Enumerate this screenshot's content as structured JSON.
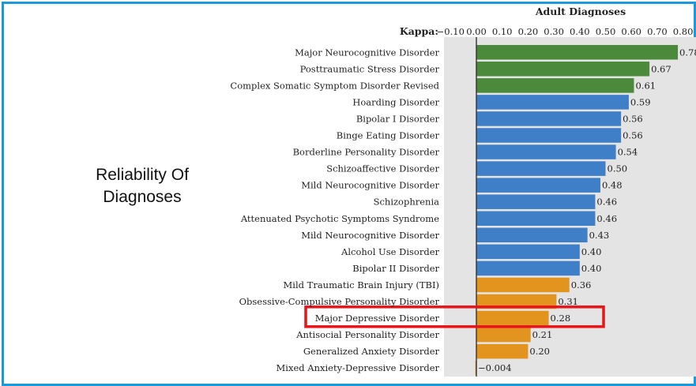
{
  "side_label": {
    "line1": "Reliability Of",
    "line2": "Diagnoses"
  },
  "colors": {
    "green": "#4a8a3a",
    "blue": "#3f7fc8",
    "orange": "#e3941e",
    "highlight": "#e8141a",
    "frame": "#1a9ad9",
    "grid_bg": "#e4e4e4"
  },
  "chart_data": {
    "type": "bar",
    "orientation": "horizontal",
    "title": "Adult Diagnoses",
    "axis_label": "Kappa:",
    "xlim": [
      -0.1,
      0.8
    ],
    "ticks": [
      "−0.10",
      "0.00",
      "0.10",
      "0.20",
      "0.30",
      "0.40",
      "0.50",
      "0.60",
      "0.70",
      "0.80"
    ],
    "tick_values": [
      -0.1,
      0.0,
      0.1,
      0.2,
      0.3,
      0.4,
      0.5,
      0.6,
      0.7,
      0.8
    ],
    "categories": [
      "Major Neurocognitive Disorder",
      "Posttraumatic Stress Disorder",
      "Complex Somatic Symptom Disorder Revised",
      "Hoarding Disorder",
      "Bipolar I Disorder",
      "Binge Eating Disorder",
      "Borderline Personality Disorder",
      "Schizoaffective Disorder",
      "Mild Neurocognitive Disorder",
      "Schizophrenia",
      "Attenuated Psychotic Symptoms Syndrome",
      "Mild Neurocognitive Disorder",
      "Alcohol Use Disorder",
      "Bipolar II Disorder",
      "Mild Traumatic Brain Injury (TBI)",
      "Obsessive-Compulsive Personality Disorder",
      "Major Depressive Disorder",
      "Antisocial Personality Disorder",
      "Generalized Anxiety Disorder",
      "Mixed Anxiety-Depressive Disorder"
    ],
    "values": [
      0.78,
      0.67,
      0.61,
      0.59,
      0.56,
      0.56,
      0.54,
      0.5,
      0.48,
      0.46,
      0.46,
      0.43,
      0.4,
      0.4,
      0.36,
      0.31,
      0.28,
      0.21,
      0.2,
      -0.004
    ],
    "value_labels": [
      "0.78",
      "0.67",
      "0.61",
      "0.59",
      "0.56",
      "0.56",
      "0.54",
      "0.50",
      "0.48",
      "0.46",
      "0.46",
      "0.43",
      "0.40",
      "0.40",
      "0.36",
      "0.31",
      "0.28",
      "0.21",
      "0.20",
      "−0.004"
    ],
    "color_groups": [
      "green",
      "green",
      "green",
      "blue",
      "blue",
      "blue",
      "blue",
      "blue",
      "blue",
      "blue",
      "blue",
      "blue",
      "blue",
      "blue",
      "orange",
      "orange",
      "orange",
      "orange",
      "orange",
      "orange"
    ],
    "highlighted_category_index": 16
  }
}
